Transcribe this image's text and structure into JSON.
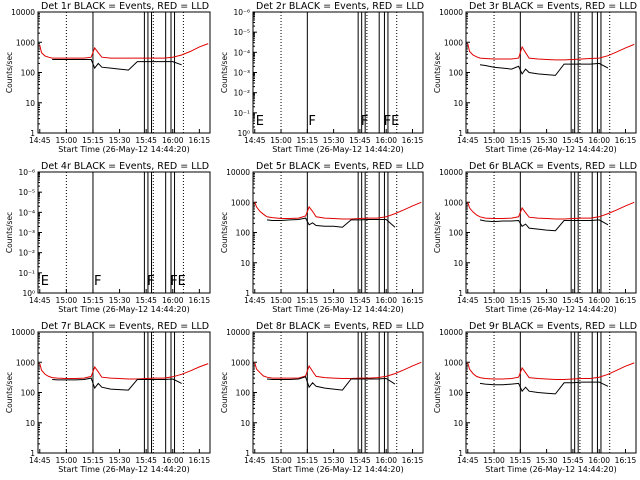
{
  "chart_data": [
    {
      "type": "line",
      "title": "Det 1r BLACK = Events, RED = LLD",
      "xlabel": "Start Time (26-May-12 14:44:20)",
      "ylabel": "Counts/sec",
      "scale": "log",
      "yticks": [
        "1",
        "10",
        "100",
        "1000",
        "10000"
      ],
      "xticks": [
        "14:45",
        "15:00",
        "15:15",
        "15:30",
        "15:45",
        "16:00",
        "16:15"
      ],
      "flags": [],
      "mode": "data",
      "series": [
        {
          "name": "RED = LLD",
          "color": "#e00000",
          "x": [
            "14:45",
            "14:46",
            "14:48",
            "14:50",
            "14:52",
            "14:55",
            "15:00",
            "15:05",
            "15:10",
            "15:14",
            "15:16",
            "15:18",
            "15:20",
            "15:25",
            "15:30",
            "15:35",
            "15:40",
            "15:45",
            "15:50",
            "15:55",
            "16:00",
            "16:05",
            "16:10",
            "16:15",
            "16:20"
          ],
          "values": [
            800,
            450,
            350,
            320,
            300,
            300,
            300,
            300,
            300,
            320,
            650,
            450,
            320,
            300,
            300,
            300,
            300,
            300,
            300,
            300,
            320,
            380,
            500,
            700,
            900
          ]
        },
        {
          "name": "BLACK = Events",
          "color": "#000000",
          "x": [
            "14:52",
            "14:55",
            "15:00",
            "15:05",
            "15:10",
            "15:14",
            "15:16",
            "15:18",
            "15:20",
            "15:25",
            "15:30",
            "15:35",
            "15:40",
            "15:45",
            "15:50",
            "15:55",
            "16:00",
            "16:05"
          ],
          "values": [
            270,
            270,
            270,
            270,
            270,
            270,
            140,
            200,
            150,
            140,
            130,
            120,
            230,
            230,
            230,
            230,
            230,
            180
          ]
        }
      ]
    },
    {
      "type": "line",
      "title": "Det 2r BLACK = Events, RED = LLD",
      "xlabel": "Start Time (26-May-12 14:44:20)",
      "ylabel": "Counts/sec",
      "scale": "log",
      "yticks": [
        "10⁰",
        "10⁻¹",
        "10⁻²",
        "10⁻³",
        "10⁻⁴",
        "10⁻⁵",
        "10⁻⁶"
      ],
      "xticks": [
        "14:45",
        "15:00",
        "15:15",
        "15:30",
        "15:45",
        "16:00",
        "16:15"
      ],
      "flags": [
        "E",
        "F",
        "F",
        "FE"
      ],
      "mode": "empty",
      "series": []
    },
    {
      "type": "line",
      "title": "Det 3r BLACK = Events, RED = LLD",
      "xlabel": "Start Time (26-May-12 14:44:20)",
      "ylabel": "Counts/sec",
      "scale": "log",
      "yticks": [
        "1",
        "10",
        "100",
        "1000",
        "10000"
      ],
      "xticks": [
        "14:45",
        "15:00",
        "15:15",
        "15:30",
        "15:45",
        "16:00",
        "16:15"
      ],
      "flags": [],
      "mode": "data",
      "series": [
        {
          "name": "RED = LLD",
          "color": "#e00000",
          "x": [
            "14:45",
            "14:46",
            "14:48",
            "14:50",
            "14:52",
            "14:55",
            "15:00",
            "15:05",
            "15:10",
            "15:14",
            "15:16",
            "15:18",
            "15:20",
            "15:25",
            "15:30",
            "15:35",
            "15:40",
            "15:45",
            "15:50",
            "15:55",
            "16:00",
            "16:05",
            "16:10",
            "16:15",
            "16:20"
          ],
          "values": [
            900,
            500,
            380,
            330,
            300,
            290,
            280,
            280,
            280,
            300,
            700,
            450,
            300,
            280,
            270,
            260,
            260,
            270,
            280,
            290,
            300,
            360,
            480,
            650,
            850
          ]
        },
        {
          "name": "BLACK = Events",
          "color": "#000000",
          "x": [
            "14:52",
            "14:55",
            "15:00",
            "15:05",
            "15:10",
            "15:14",
            "15:16",
            "15:18",
            "15:20",
            "15:25",
            "15:30",
            "15:35",
            "15:40",
            "15:45",
            "15:50",
            "15:55",
            "16:00",
            "16:05"
          ],
          "values": [
            180,
            170,
            150,
            140,
            130,
            160,
            90,
            130,
            100,
            90,
            85,
            80,
            190,
            190,
            190,
            190,
            200,
            140
          ]
        }
      ]
    },
    {
      "type": "line",
      "title": "Det 4r BLACK = Events, RED = LLD",
      "xlabel": "Start Time (26-May-12 14:44:20)",
      "ylabel": "Counts/sec",
      "scale": "log",
      "yticks": [
        "10⁰",
        "10⁻¹",
        "10⁻²",
        "10⁻³",
        "10⁻⁴",
        "10⁻⁵",
        "10⁻⁶"
      ],
      "xticks": [
        "14:45",
        "15:00",
        "15:15",
        "15:30",
        "15:45",
        "16:00",
        "16:15"
      ],
      "flags": [
        "E",
        "F",
        "F",
        "FE"
      ],
      "mode": "empty",
      "series": []
    },
    {
      "type": "line",
      "title": "Det 5r BLACK = Events, RED = LLD",
      "xlabel": "Start Time (26-May-12 14:44:20)",
      "ylabel": "Counts/sec",
      "scale": "log",
      "yticks": [
        "1",
        "10",
        "100",
        "1000",
        "10000"
      ],
      "xticks": [
        "14:45",
        "15:00",
        "15:15",
        "15:30",
        "15:45",
        "16:00",
        "16:15"
      ],
      "flags": [],
      "mode": "data",
      "series": [
        {
          "name": "RED = LLD",
          "color": "#e00000",
          "x": [
            "14:45",
            "14:46",
            "14:48",
            "14:50",
            "14:52",
            "14:55",
            "15:00",
            "15:05",
            "15:10",
            "15:14",
            "15:16",
            "15:18",
            "15:20",
            "15:25",
            "15:30",
            "15:35",
            "15:40",
            "15:45",
            "15:50",
            "15:55",
            "16:00",
            "16:05",
            "16:10",
            "16:15",
            "16:20"
          ],
          "values": [
            1000,
            700,
            500,
            400,
            330,
            310,
            290,
            290,
            300,
            350,
            700,
            500,
            330,
            300,
            290,
            280,
            280,
            290,
            300,
            300,
            330,
            420,
            560,
            760,
            1000
          ]
        },
        {
          "name": "BLACK = Events",
          "color": "#000000",
          "x": [
            "14:52",
            "14:55",
            "15:00",
            "15:05",
            "15:10",
            "15:14",
            "15:16",
            "15:18",
            "15:20",
            "15:25",
            "15:30",
            "15:35",
            "15:40",
            "15:45",
            "15:50",
            "15:55",
            "16:00",
            "16:05"
          ],
          "values": [
            260,
            250,
            250,
            260,
            270,
            300,
            180,
            210,
            170,
            160,
            160,
            150,
            260,
            260,
            270,
            270,
            270,
            150
          ]
        }
      ]
    },
    {
      "type": "line",
      "title": "Det 6r BLACK = Events, RED = LLD",
      "xlabel": "Start Time (26-May-12 14:44:20)",
      "ylabel": "Counts/sec",
      "scale": "log",
      "yticks": [
        "1",
        "10",
        "100",
        "1000",
        "10000"
      ],
      "xticks": [
        "14:45",
        "15:00",
        "15:15",
        "15:30",
        "15:45",
        "16:00",
        "16:15"
      ],
      "flags": [],
      "mode": "data",
      "series": [
        {
          "name": "RED = LLD",
          "color": "#e00000",
          "x": [
            "14:45",
            "14:46",
            "14:48",
            "14:50",
            "14:52",
            "14:55",
            "15:00",
            "15:05",
            "15:10",
            "15:14",
            "15:16",
            "15:18",
            "15:20",
            "15:25",
            "15:30",
            "15:35",
            "15:40",
            "15:45",
            "15:50",
            "15:55",
            "16:00",
            "16:05",
            "16:10",
            "16:15",
            "16:20"
          ],
          "values": [
            1000,
            650,
            480,
            380,
            330,
            300,
            290,
            290,
            300,
            330,
            650,
            450,
            320,
            300,
            290,
            280,
            280,
            290,
            300,
            300,
            330,
            420,
            560,
            760,
            1000
          ]
        },
        {
          "name": "BLACK = Events",
          "color": "#000000",
          "x": [
            "14:52",
            "14:55",
            "15:00",
            "15:05",
            "15:10",
            "15:14",
            "15:16",
            "15:18",
            "15:20",
            "15:25",
            "15:30",
            "15:35",
            "15:40",
            "15:45",
            "15:50",
            "15:55",
            "16:00",
            "16:05"
          ],
          "values": [
            260,
            240,
            230,
            240,
            240,
            250,
            160,
            190,
            140,
            130,
            120,
            115,
            250,
            250,
            250,
            250,
            260,
            180
          ]
        }
      ]
    },
    {
      "type": "line",
      "title": "Det 7r BLACK = Events, RED = LLD",
      "xlabel": "Start Time (26-May-12 14:44:20)",
      "ylabel": "Counts/sec",
      "scale": "log",
      "yticks": [
        "1",
        "10",
        "100",
        "1000",
        "10000"
      ],
      "xticks": [
        "14:45",
        "15:00",
        "15:15",
        "15:30",
        "15:45",
        "16:00",
        "16:15"
      ],
      "flags": [],
      "mode": "data",
      "series": [
        {
          "name": "RED = LLD",
          "color": "#e00000",
          "x": [
            "14:45",
            "14:46",
            "14:48",
            "14:50",
            "14:52",
            "14:55",
            "15:00",
            "15:05",
            "15:10",
            "15:14",
            "15:16",
            "15:18",
            "15:20",
            "15:25",
            "15:30",
            "15:35",
            "15:40",
            "15:45",
            "15:50",
            "15:55",
            "16:00",
            "16:05",
            "16:10",
            "16:15",
            "16:20"
          ],
          "values": [
            900,
            550,
            400,
            340,
            310,
            300,
            290,
            290,
            300,
            340,
            700,
            480,
            320,
            300,
            290,
            280,
            280,
            290,
            300,
            300,
            330,
            400,
            520,
            700,
            900
          ]
        },
        {
          "name": "BLACK = Events",
          "color": "#000000",
          "x": [
            "14:52",
            "14:55",
            "15:00",
            "15:05",
            "15:10",
            "15:14",
            "15:16",
            "15:18",
            "15:20",
            "15:25",
            "15:30",
            "15:35",
            "15:40",
            "15:45",
            "15:50",
            "15:55",
            "16:00",
            "16:05"
          ],
          "values": [
            270,
            260,
            260,
            260,
            270,
            300,
            140,
            200,
            150,
            130,
            125,
            120,
            270,
            270,
            270,
            270,
            280,
            200
          ]
        }
      ]
    },
    {
      "type": "line",
      "title": "Det 8r BLACK = Events, RED = LLD",
      "xlabel": "Start Time (26-May-12 14:44:20)",
      "ylabel": "Counts/sec",
      "scale": "log",
      "yticks": [
        "1",
        "10",
        "100",
        "1000",
        "10000"
      ],
      "xticks": [
        "14:45",
        "15:00",
        "15:15",
        "15:30",
        "15:45",
        "16:00",
        "16:15"
      ],
      "flags": [],
      "mode": "data",
      "series": [
        {
          "name": "RED = LLD",
          "color": "#e00000",
          "x": [
            "14:45",
            "14:46",
            "14:48",
            "14:50",
            "14:52",
            "14:55",
            "15:00",
            "15:05",
            "15:10",
            "15:14",
            "15:16",
            "15:18",
            "15:20",
            "15:25",
            "15:30",
            "15:35",
            "15:40",
            "15:45",
            "15:50",
            "15:55",
            "16:00",
            "16:05",
            "16:10",
            "16:15",
            "16:20"
          ],
          "values": [
            950,
            600,
            450,
            350,
            320,
            300,
            300,
            300,
            300,
            350,
            750,
            500,
            340,
            310,
            300,
            290,
            290,
            300,
            300,
            310,
            340,
            420,
            560,
            760,
            1000
          ]
        },
        {
          "name": "BLACK = Events",
          "color": "#000000",
          "x": [
            "14:52",
            "14:55",
            "15:00",
            "15:05",
            "15:10",
            "15:14",
            "15:16",
            "15:18",
            "15:20",
            "15:25",
            "15:30",
            "15:35",
            "15:40",
            "15:45",
            "15:50",
            "15:55",
            "16:00",
            "16:05"
          ],
          "values": [
            280,
            270,
            270,
            270,
            280,
            330,
            150,
            210,
            160,
            140,
            130,
            120,
            280,
            280,
            280,
            280,
            290,
            190
          ]
        }
      ]
    },
    {
      "type": "line",
      "title": "Det 9r BLACK = Events, RED = LLD",
      "xlabel": "Start Time (26-May-12 14:44:20)",
      "ylabel": "Counts/sec",
      "scale": "log",
      "yticks": [
        "1",
        "10",
        "100",
        "1000",
        "10000"
      ],
      "xticks": [
        "14:45",
        "15:00",
        "15:15",
        "15:30",
        "15:45",
        "16:00",
        "16:15"
      ],
      "flags": [],
      "mode": "data",
      "series": [
        {
          "name": "RED = LLD",
          "color": "#e00000",
          "x": [
            "14:45",
            "14:46",
            "14:48",
            "14:50",
            "14:52",
            "14:55",
            "15:00",
            "15:05",
            "15:10",
            "15:14",
            "15:16",
            "15:18",
            "15:20",
            "15:25",
            "15:30",
            "15:35",
            "15:40",
            "15:45",
            "15:50",
            "15:55",
            "16:00",
            "16:05",
            "16:10",
            "16:15",
            "16:20"
          ],
          "values": [
            950,
            600,
            420,
            340,
            310,
            290,
            280,
            280,
            290,
            320,
            650,
            450,
            310,
            290,
            280,
            270,
            270,
            280,
            290,
            290,
            320,
            400,
            540,
            740,
            950
          ]
        },
        {
          "name": "BLACK = Events",
          "color": "#000000",
          "x": [
            "14:52",
            "14:55",
            "15:00",
            "15:05",
            "15:10",
            "15:14",
            "15:16",
            "15:18",
            "15:20",
            "15:25",
            "15:30",
            "15:35",
            "15:40",
            "15:45",
            "15:50",
            "15:55",
            "16:00",
            "16:05"
          ],
          "values": [
            200,
            190,
            180,
            180,
            190,
            200,
            110,
            150,
            110,
            100,
            95,
            90,
            210,
            210,
            220,
            220,
            220,
            160
          ]
        }
      ]
    }
  ]
}
